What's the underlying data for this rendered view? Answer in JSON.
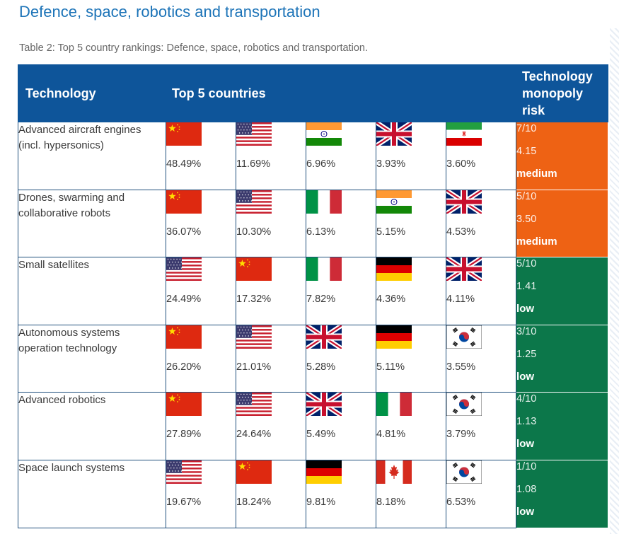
{
  "title": "Defence, space, robotics and transportation",
  "caption": "Table 2: Top 5 country rankings: Defence, space, robotics and transportation.",
  "headers": {
    "technology": "Technology",
    "top5": "Top 5 countries",
    "risk": "Technology monopoly risk"
  },
  "rows": [
    {
      "technology": "Advanced aircraft engines (incl. hypersonics)",
      "countries": [
        {
          "flag": "china-flag",
          "pct": "48.49%"
        },
        {
          "flag": "usa-flag",
          "pct": "11.69%"
        },
        {
          "flag": "india-flag",
          "pct": "6.96%"
        },
        {
          "flag": "uk-flag",
          "pct": "3.93%"
        },
        {
          "flag": "iran-flag",
          "pct": "3.60%"
        }
      ],
      "risk": {
        "score": "7/10",
        "value": "4.15",
        "level": "medium",
        "color": "#ee6214"
      }
    },
    {
      "technology": "Drones, swarming and collaborative robots",
      "countries": [
        {
          "flag": "china-flag",
          "pct": "36.07%"
        },
        {
          "flag": "usa-flag",
          "pct": "10.30%"
        },
        {
          "flag": "italy-flag",
          "pct": "6.13%"
        },
        {
          "flag": "india-flag",
          "pct": "5.15%"
        },
        {
          "flag": "uk-flag",
          "pct": "4.53%"
        }
      ],
      "risk": {
        "score": "5/10",
        "value": "3.50",
        "level": "medium",
        "color": "#ee6214"
      }
    },
    {
      "technology": "Small satellites",
      "countries": [
        {
          "flag": "usa-flag",
          "pct": "24.49%"
        },
        {
          "flag": "china-flag",
          "pct": "17.32%"
        },
        {
          "flag": "italy-flag",
          "pct": "7.82%"
        },
        {
          "flag": "germany-flag",
          "pct": "4.36%"
        },
        {
          "flag": "uk-flag",
          "pct": "4.11%"
        }
      ],
      "risk": {
        "score": "5/10",
        "value": "1.41",
        "level": "low",
        "color": "#0c774a"
      }
    },
    {
      "technology": "Autonomous systems operation technology",
      "countries": [
        {
          "flag": "china-flag",
          "pct": "26.20%"
        },
        {
          "flag": "usa-flag",
          "pct": "21.01%"
        },
        {
          "flag": "uk-flag",
          "pct": "5.28%"
        },
        {
          "flag": "germany-flag",
          "pct": "5.11%"
        },
        {
          "flag": "south-korea-flag",
          "pct": "3.55%"
        }
      ],
      "risk": {
        "score": "3/10",
        "value": "1.25",
        "level": "low",
        "color": "#0c774a"
      }
    },
    {
      "technology": "Advanced robotics",
      "countries": [
        {
          "flag": "china-flag",
          "pct": "27.89%"
        },
        {
          "flag": "usa-flag",
          "pct": "24.64%"
        },
        {
          "flag": "uk-flag",
          "pct": "5.49%"
        },
        {
          "flag": "italy-flag",
          "pct": "4.81%"
        },
        {
          "flag": "south-korea-flag",
          "pct": "3.79%"
        }
      ],
      "risk": {
        "score": "4/10",
        "value": "1.13",
        "level": "low",
        "color": "#0c774a"
      }
    },
    {
      "technology": "Space launch systems",
      "countries": [
        {
          "flag": "usa-flag",
          "pct": "19.67%"
        },
        {
          "flag": "china-flag",
          "pct": "18.24%"
        },
        {
          "flag": "germany-flag",
          "pct": "9.81%"
        },
        {
          "flag": "canada-flag",
          "pct": "8.18%"
        },
        {
          "flag": "south-korea-flag",
          "pct": "6.53%"
        }
      ],
      "risk": {
        "score": "1/10",
        "value": "1.08",
        "level": "low",
        "color": "#0c774a"
      }
    }
  ]
}
